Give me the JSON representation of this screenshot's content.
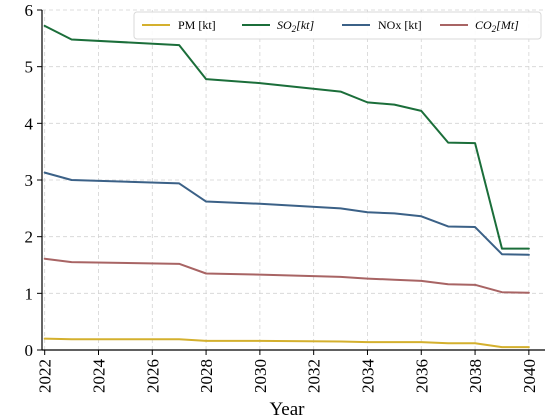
{
  "chart_data": {
    "type": "line",
    "xlabel": "Year",
    "ylabel": "",
    "xlim": [
      2021.9,
      2040.6
    ],
    "ylim": [
      0,
      6
    ],
    "xticks": [
      "2022",
      "2024",
      "2026",
      "2028",
      "2030",
      "2032",
      "2034",
      "2036",
      "2038",
      "2040"
    ],
    "yticks": [
      "0",
      "1",
      "2",
      "3",
      "4",
      "5",
      "6"
    ],
    "grid": true,
    "legend_position": "top",
    "x": [
      2022,
      2023,
      2027,
      2028,
      2030,
      2033,
      2034,
      2035,
      2036,
      2037,
      2038,
      2039,
      2040
    ],
    "series": [
      {
        "name": "PM [kt]",
        "color": "#d4b02e",
        "values": [
          0.2,
          0.19,
          0.19,
          0.16,
          0.16,
          0.15,
          0.14,
          0.14,
          0.14,
          0.12,
          0.12,
          0.05,
          0.05
        ]
      },
      {
        "name": "SO2[kt]",
        "color": "#1b6e3a",
        "values": [
          5.72,
          5.48,
          5.38,
          4.78,
          4.71,
          4.56,
          4.37,
          4.33,
          4.22,
          3.66,
          3.65,
          1.79,
          1.79
        ]
      },
      {
        "name": "NOx [kt]",
        "color": "#3b6187",
        "values": [
          3.13,
          3.0,
          2.94,
          2.62,
          2.58,
          2.5,
          2.43,
          2.41,
          2.36,
          2.18,
          2.17,
          1.69,
          1.68
        ]
      },
      {
        "name": "CO2[Mt]",
        "color": "#a86464",
        "values": [
          1.61,
          1.55,
          1.52,
          1.35,
          1.33,
          1.29,
          1.26,
          1.24,
          1.22,
          1.16,
          1.15,
          1.02,
          1.01
        ]
      }
    ]
  }
}
